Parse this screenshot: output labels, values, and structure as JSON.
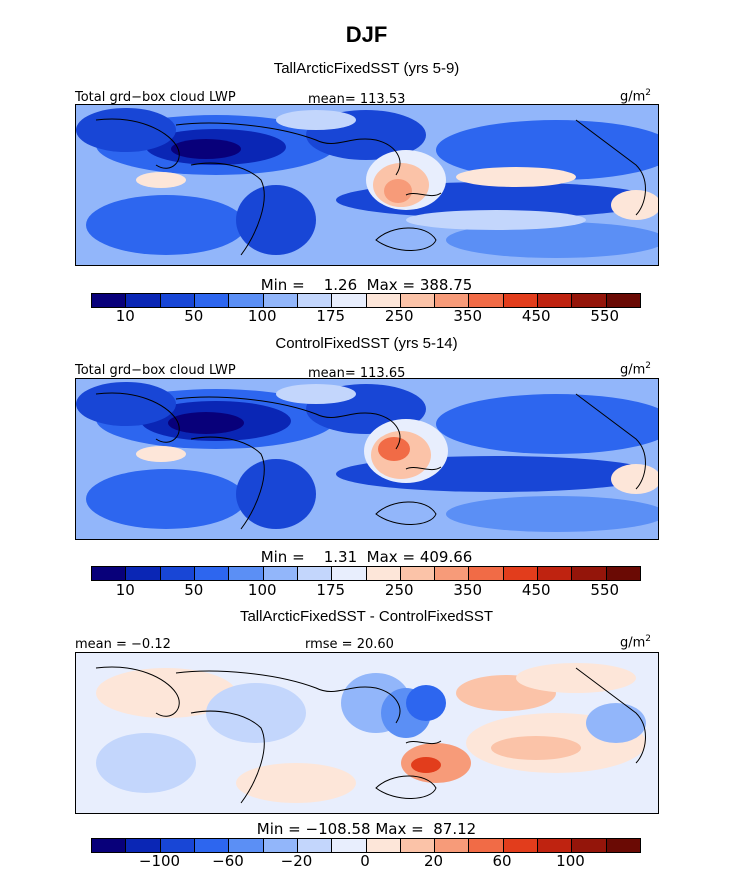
{
  "figure_title": "DJF",
  "units": {
    "label": "g/m",
    "sup": "2"
  },
  "palette": [
    "#08007a",
    "#0a26b5",
    "#1846d6",
    "#2d66ef",
    "#5b8ff5",
    "#92b6fa",
    "#c3d6fc",
    "#e8eefd",
    "#fde6d9",
    "#fbc3a8",
    "#f79b79",
    "#f16b46",
    "#e23d1c",
    "#bf2310",
    "#94150a",
    "#6a0a04"
  ],
  "panels": [
    {
      "subtitle": "TallArcticFixedSST (yrs 5-9)",
      "left_label": "Total grd−box cloud LWP",
      "center_label": "mean= 113.53",
      "min_label": "Min =",
      "min_value": "1.26",
      "max_label": "Max =",
      "max_value": "388.75",
      "colorbar_ticks": [
        "10",
        "50",
        "100",
        "175",
        "250",
        "350",
        "450",
        "550"
      ]
    },
    {
      "subtitle": "ControlFixedSST (yrs 5-14)",
      "left_label": "Total grd−box cloud LWP",
      "center_label": "mean= 113.65",
      "min_label": "Min =",
      "min_value": "1.31",
      "max_label": "Max =",
      "max_value": "409.66",
      "colorbar_ticks": [
        "10",
        "50",
        "100",
        "175",
        "250",
        "350",
        "450",
        "550"
      ]
    },
    {
      "subtitle": "TallArcticFixedSST - ControlFixedSST",
      "left_label": "mean =  −0.12",
      "center_label": "rmse =  20.60",
      "min_label": "Min =",
      "min_value": "−108.58",
      "max_label": "Max =",
      "max_value": "87.12",
      "colorbar_ticks": [
        "−100",
        "−60",
        "−20",
        "0",
        "20",
        "60",
        "100"
      ]
    }
  ],
  "chart_data": [
    {
      "type": "heatmap",
      "title": "TallArcticFixedSST (yrs 5-9)",
      "variable": "Total grd-box cloud LWP",
      "units": "g/m^2",
      "mean": 113.53,
      "min": 1.26,
      "max": 388.75,
      "colorbar_levels": [
        10,
        50,
        100,
        175,
        250,
        350,
        450,
        550
      ]
    },
    {
      "type": "heatmap",
      "title": "ControlFixedSST (yrs 5-14)",
      "variable": "Total grd-box cloud LWP",
      "units": "g/m^2",
      "mean": 113.65,
      "min": 1.31,
      "max": 409.66,
      "colorbar_levels": [
        10,
        50,
        100,
        175,
        250,
        350,
        450,
        550
      ]
    },
    {
      "type": "heatmap",
      "title": "TallArcticFixedSST - ControlFixedSST",
      "units": "g/m^2",
      "mean": -0.12,
      "rmse": 20.6,
      "min": -108.58,
      "max": 87.12,
      "colorbar_levels": [
        -100,
        -60,
        -20,
        0,
        20,
        60,
        100
      ]
    }
  ]
}
